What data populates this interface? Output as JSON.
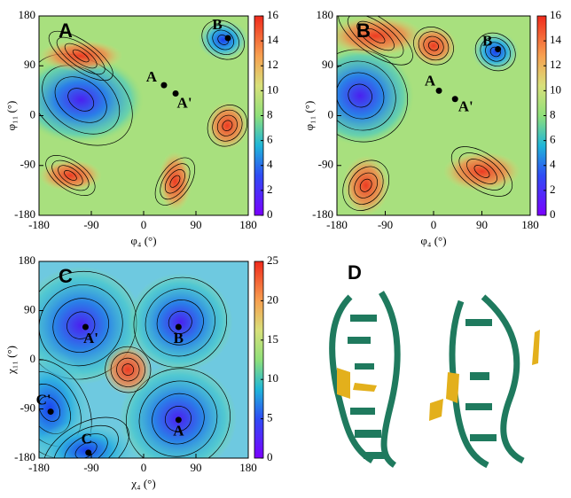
{
  "chart_data": [
    {
      "type": "contour",
      "panel_label": "A",
      "xlabel": "φ₄ (°)",
      "ylabel": "φ₁₁ (°)",
      "xlim": [
        -180,
        180
      ],
      "xticks": [
        -180,
        -90,
        0,
        90,
        180
      ],
      "ylim": [
        -180,
        180
      ],
      "yticks": [
        -180,
        -90,
        0,
        90,
        180
      ],
      "colorbar_lim": [
        0,
        16
      ],
      "colorbar_ticks": [
        0,
        2,
        4,
        6,
        8,
        10,
        12,
        14,
        16
      ],
      "points": [
        {
          "label": "A",
          "x": 35,
          "y": 55
        },
        {
          "label": "A'",
          "x": 55,
          "y": 40
        },
        {
          "label": "B",
          "x": 145,
          "y": 140
        }
      ]
    },
    {
      "type": "contour",
      "panel_label": "B",
      "xlabel": "φ₄ (°)",
      "ylabel": "φ₁₁ (°)",
      "xlim": [
        -180,
        180
      ],
      "xticks": [
        -180,
        -90,
        0,
        90,
        180
      ],
      "ylim": [
        -180,
        180
      ],
      "yticks": [
        -180,
        -90,
        0,
        90,
        180
      ],
      "colorbar_lim": [
        0,
        16
      ],
      "colorbar_ticks": [
        0,
        2,
        4,
        6,
        8,
        10,
        12,
        14,
        16
      ],
      "points": [
        {
          "label": "A",
          "x": 10,
          "y": 45
        },
        {
          "label": "A'",
          "x": 40,
          "y": 30
        },
        {
          "label": "B",
          "x": 120,
          "y": 120
        }
      ]
    },
    {
      "type": "contour",
      "panel_label": "C",
      "xlabel": "χ₄ (°)",
      "ylabel": "χ₁₁ (°)",
      "xlim": [
        -180,
        180
      ],
      "xticks": [
        -180,
        -90,
        0,
        90,
        180
      ],
      "ylim": [
        -180,
        180
      ],
      "yticks": [
        -180,
        -90,
        0,
        90,
        180
      ],
      "colorbar_lim": [
        0,
        25
      ],
      "colorbar_ticks": [
        0,
        5,
        10,
        15,
        20,
        25
      ],
      "points": [
        {
          "label": "A'",
          "x": -100,
          "y": 60
        },
        {
          "label": "B",
          "x": 60,
          "y": 60
        },
        {
          "label": "C'",
          "x": -160,
          "y": -95
        },
        {
          "label": "A",
          "x": 60,
          "y": -110
        },
        {
          "label": "C",
          "x": -95,
          "y": -170
        }
      ]
    }
  ],
  "panel_d": {
    "label": "D"
  }
}
